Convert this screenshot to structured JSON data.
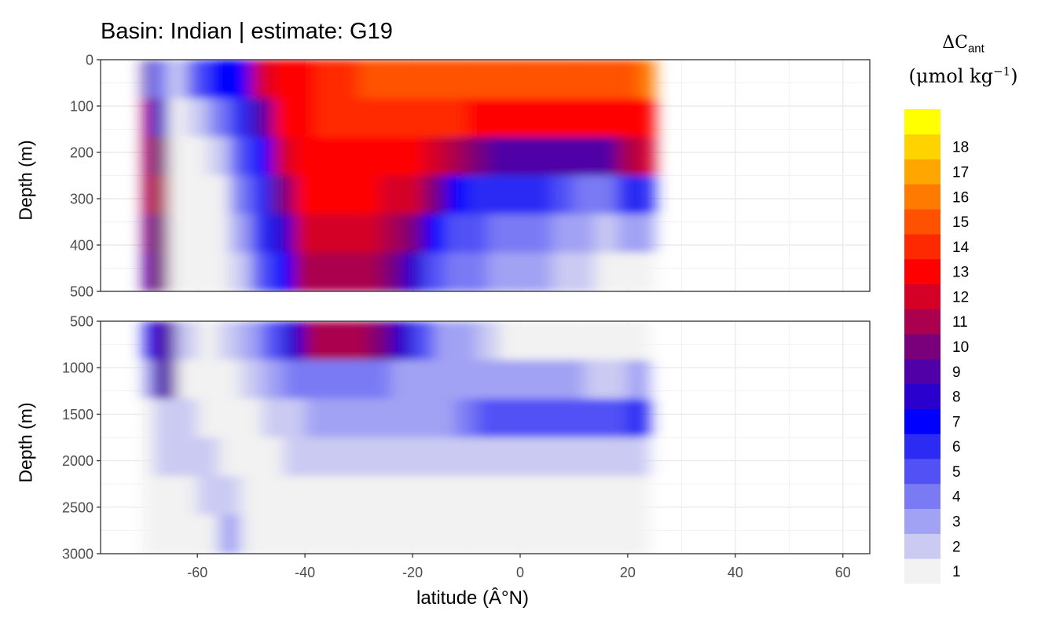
{
  "title": "Basin: Indian | estimate: G19",
  "chart_data": {
    "type": "heatmap",
    "title": "Basin: Indian | estimate: G19",
    "xlabel": "latitude (Â°N)",
    "xlim": [
      -78,
      65
    ],
    "x_ticks": [
      -60,
      -40,
      -20,
      0,
      20,
      40,
      60
    ],
    "panels": [
      {
        "name": "top",
        "ylabel": "Depth (m)",
        "ylim": [
          0,
          500
        ],
        "y_ticks": [
          0,
          100,
          200,
          300,
          400,
          500
        ],
        "reversed": true,
        "data_x_range": [
          -70,
          25
        ],
        "columns": [
          {
            "lat": -70,
            "values": [
              9,
              11,
              11,
              11,
              10,
              9
            ]
          },
          {
            "lat": -67,
            "values": [
              4,
              8,
              10,
              11,
              10,
              10
            ]
          },
          {
            "lat": -64,
            "values": [
              2,
              1,
              1,
              1,
              1,
              1
            ]
          },
          {
            "lat": -60,
            "values": [
              5,
              2,
              1,
              1,
              1,
              1
            ]
          },
          {
            "lat": -56,
            "values": [
              7,
              4,
              2,
              1,
              1,
              1
            ]
          },
          {
            "lat": -52,
            "values": [
              7,
              6,
              5,
              4,
              3,
              2
            ]
          },
          {
            "lat": -48,
            "values": [
              12,
              9,
              7,
              6,
              6,
              5
            ]
          },
          {
            "lat": -44,
            "values": [
              13,
              13,
              12,
              10,
              8,
              7
            ]
          },
          {
            "lat": -40,
            "values": [
              13,
              13,
              13,
              13,
              12,
              11
            ]
          },
          {
            "lat": -36,
            "values": [
              14,
              14,
              13,
              13,
              12,
              11
            ]
          },
          {
            "lat": -32,
            "values": [
              14,
              14,
              13,
              13,
              12,
              11
            ]
          },
          {
            "lat": -28,
            "values": [
              15,
              14,
              13,
              13,
              12,
              11
            ]
          },
          {
            "lat": -24,
            "values": [
              15,
              14,
              13,
              12,
              11,
              10
            ]
          },
          {
            "lat": -20,
            "values": [
              15,
              14,
              13,
              12,
              10,
              8
            ]
          },
          {
            "lat": -16,
            "values": [
              15,
              14,
              12,
              10,
              7,
              5
            ]
          },
          {
            "lat": -12,
            "values": [
              15,
              14,
              11,
              7,
              5,
              4
            ]
          },
          {
            "lat": -8,
            "values": [
              15,
              13,
              10,
              6,
              5,
              4
            ]
          },
          {
            "lat": -4,
            "values": [
              15,
              13,
              9,
              6,
              4,
              3
            ]
          },
          {
            "lat": 0,
            "values": [
              15,
              13,
              9,
              6,
              4,
              3
            ]
          },
          {
            "lat": 4,
            "values": [
              15,
              13,
              9,
              6,
              4,
              3
            ]
          },
          {
            "lat": 8,
            "values": [
              15,
              13,
              9,
              5,
              3,
              2
            ]
          },
          {
            "lat": 12,
            "values": [
              15,
              13,
              9,
              4,
              3,
              2
            ]
          },
          {
            "lat": 16,
            "values": [
              15,
              13,
              9,
              4,
              2,
              1
            ]
          },
          {
            "lat": 20,
            "values": [
              15,
              13,
              11,
              6,
              3,
              1
            ]
          },
          {
            "lat": 24,
            "values": [
              16,
              13,
              12,
              6,
              3,
              1
            ]
          }
        ]
      },
      {
        "name": "bottom",
        "ylabel": "Depth (m)",
        "ylim": [
          500,
          3000
        ],
        "y_ticks": [
          500,
          1000,
          1500,
          2000,
          2500,
          3000
        ],
        "reversed": true,
        "data_x_range": [
          -70,
          24
        ],
        "columns": [
          {
            "lat": -70,
            "values": [
              6,
              3,
              1,
              1,
              1,
              1
            ]
          },
          {
            "lat": -66,
            "values": [
              9,
              9,
              2,
              2,
              1,
              1
            ]
          },
          {
            "lat": -62,
            "values": [
              2,
              1,
              2,
              2,
              1,
              1
            ]
          },
          {
            "lat": -58,
            "values": [
              1,
              1,
              1,
              2,
              2,
              1
            ]
          },
          {
            "lat": -54,
            "values": [
              2,
              1,
              1,
              1,
              2,
              3
            ]
          },
          {
            "lat": -50,
            "values": [
              3,
              2,
              1,
              1,
              1,
              1
            ]
          },
          {
            "lat": -46,
            "values": [
              5,
              3,
              2,
              1,
              1,
              1
            ]
          },
          {
            "lat": -42,
            "values": [
              8,
              4,
              2,
              2,
              1,
              1
            ]
          },
          {
            "lat": -38,
            "values": [
              11,
              4,
              3,
              2,
              1,
              1
            ]
          },
          {
            "lat": -34,
            "values": [
              11,
              4,
              3,
              2,
              1,
              1
            ]
          },
          {
            "lat": -30,
            "values": [
              11,
              4,
              3,
              2,
              1,
              1
            ]
          },
          {
            "lat": -26,
            "values": [
              10,
              4,
              3,
              2,
              1,
              1
            ]
          },
          {
            "lat": -22,
            "values": [
              8,
              3,
              3,
              2,
              1,
              1
            ]
          },
          {
            "lat": -18,
            "values": [
              5,
              3,
              3,
              2,
              1,
              1
            ]
          },
          {
            "lat": -14,
            "values": [
              3,
              3,
              3,
              2,
              1,
              1
            ]
          },
          {
            "lat": -10,
            "values": [
              3,
              3,
              4,
              2,
              1,
              1
            ]
          },
          {
            "lat": -6,
            "values": [
              2,
              3,
              5,
              2,
              1,
              1
            ]
          },
          {
            "lat": -2,
            "values": [
              1,
              3,
              5,
              2,
              1,
              1
            ]
          },
          {
            "lat": 2,
            "values": [
              1,
              3,
              5,
              2,
              1,
              1
            ]
          },
          {
            "lat": 6,
            "values": [
              1,
              3,
              5,
              2,
              1,
              1
            ]
          },
          {
            "lat": 10,
            "values": [
              1,
              3,
              5,
              2,
              1,
              1
            ]
          },
          {
            "lat": 14,
            "values": [
              1,
              2,
              5,
              2,
              1,
              1
            ]
          },
          {
            "lat": 18,
            "values": [
              1,
              2,
              5,
              2,
              1,
              1
            ]
          },
          {
            "lat": 22,
            "values": [
              1,
              3,
              6,
              2,
              1,
              1
            ]
          }
        ]
      }
    ],
    "legend": {
      "title": "ΔCant (μmol kg⁻¹)",
      "placement": "right",
      "levels": [
        1,
        2,
        3,
        4,
        5,
        6,
        7,
        8,
        9,
        10,
        11,
        12,
        13,
        14,
        15,
        16,
        17,
        18
      ],
      "colors": [
        "#F2F2F2",
        "#CACAF3",
        "#A2A2F4",
        "#7A7AF5",
        "#5151F6",
        "#2B2BF4",
        "#0000FF",
        "#2A00CF",
        "#5000A6",
        "#79007A",
        "#AA004E",
        "#D40025",
        "#FF0000",
        "#FF2900",
        "#FF5200",
        "#FF7A00",
        "#FFA600",
        "#FFD300",
        "#FFFF00"
      ]
    }
  },
  "legend_title": {
    "delta_c": "ΔC",
    "sub": "ant",
    "unit_prefix": "(μmol kg",
    "unit_sup": "−1",
    "unit_suffix": ")"
  }
}
